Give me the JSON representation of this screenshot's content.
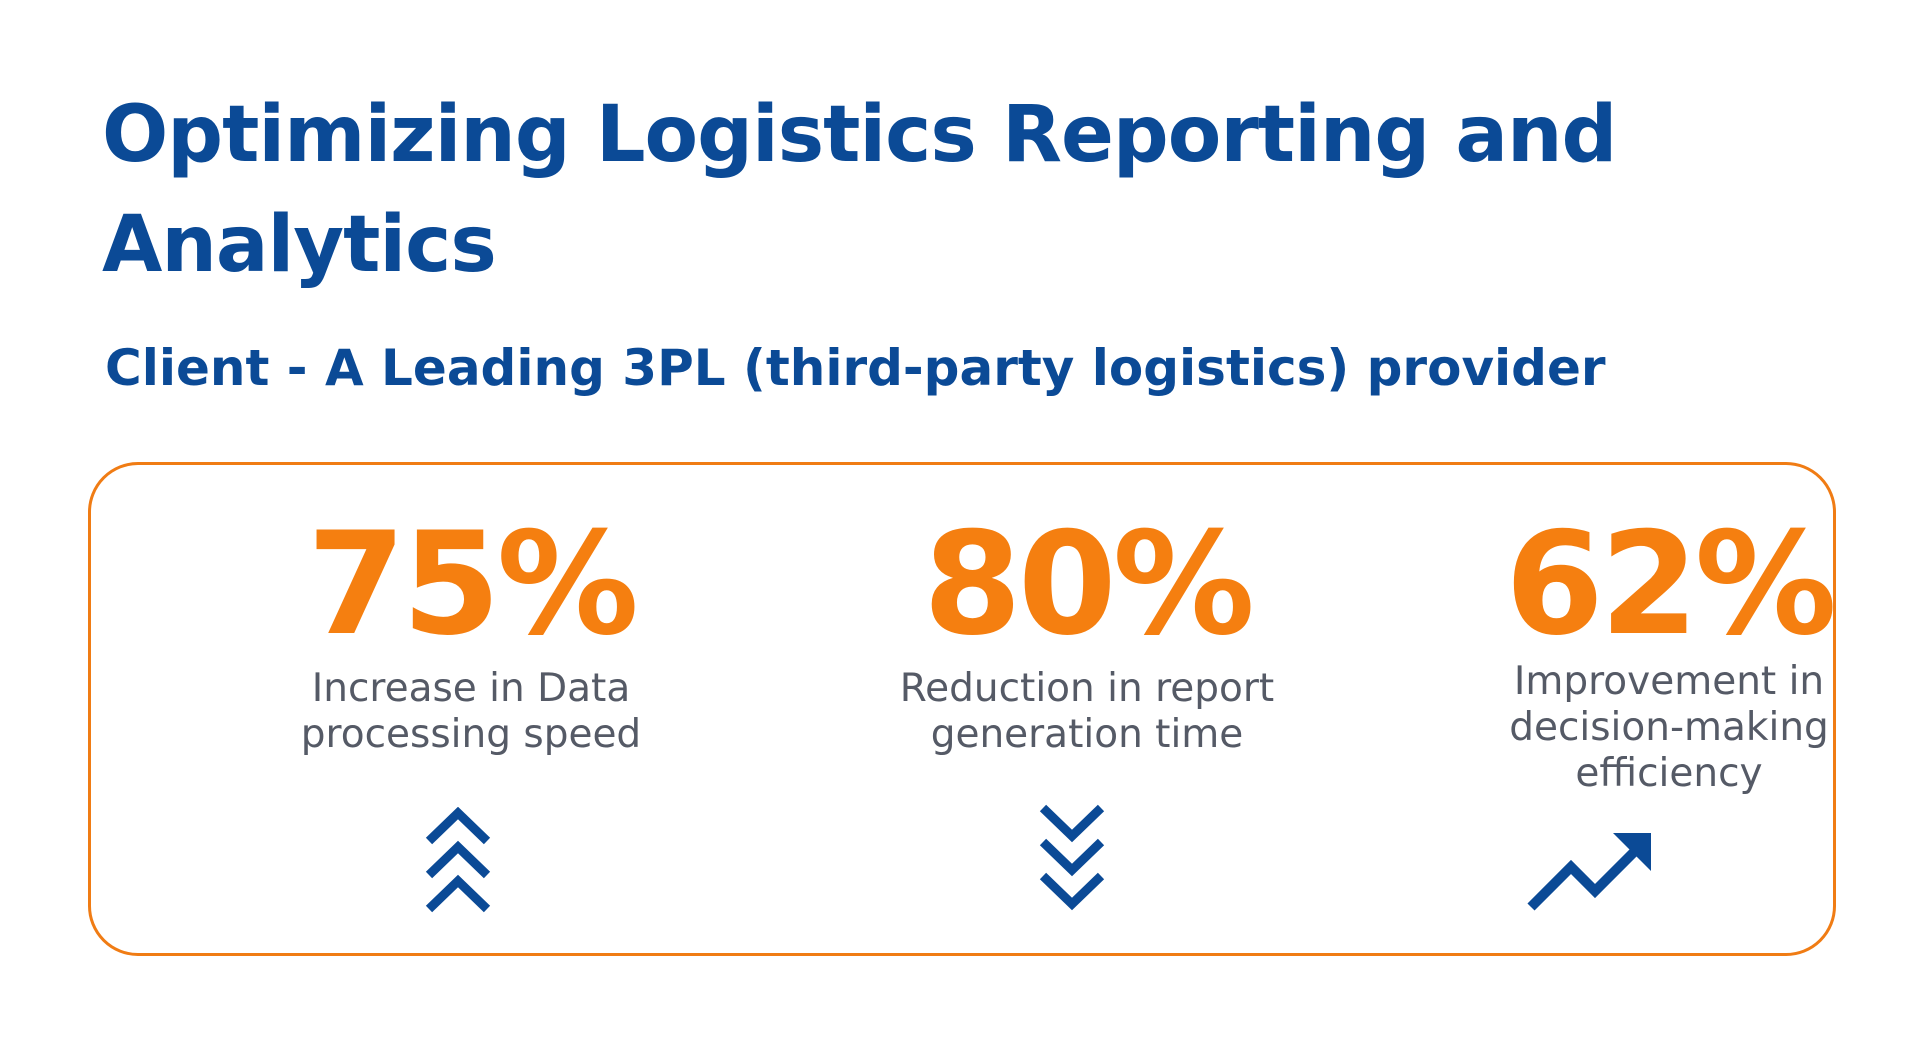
{
  "header": {
    "title": "Optimizing Logistics Reporting and Analytics",
    "subtitle": "Client - A Leading 3PL (third-party logistics) provider"
  },
  "colors": {
    "title": "#0b4a96",
    "accent": "#f57f10",
    "label": "#555a66",
    "icon": "#0b4a96",
    "border": "#f07c14"
  },
  "stats": [
    {
      "value": "75%",
      "label": "Increase in Data\nprocessing speed",
      "icon": "triple-chevron-up-icon"
    },
    {
      "value": "80%",
      "label": "Reduction in report\ngeneration time",
      "icon": "triple-chevron-down-icon"
    },
    {
      "value": "62%",
      "label": "Improvement in\ndecision-making\nefficiency",
      "icon": "trending-up-icon"
    }
  ]
}
